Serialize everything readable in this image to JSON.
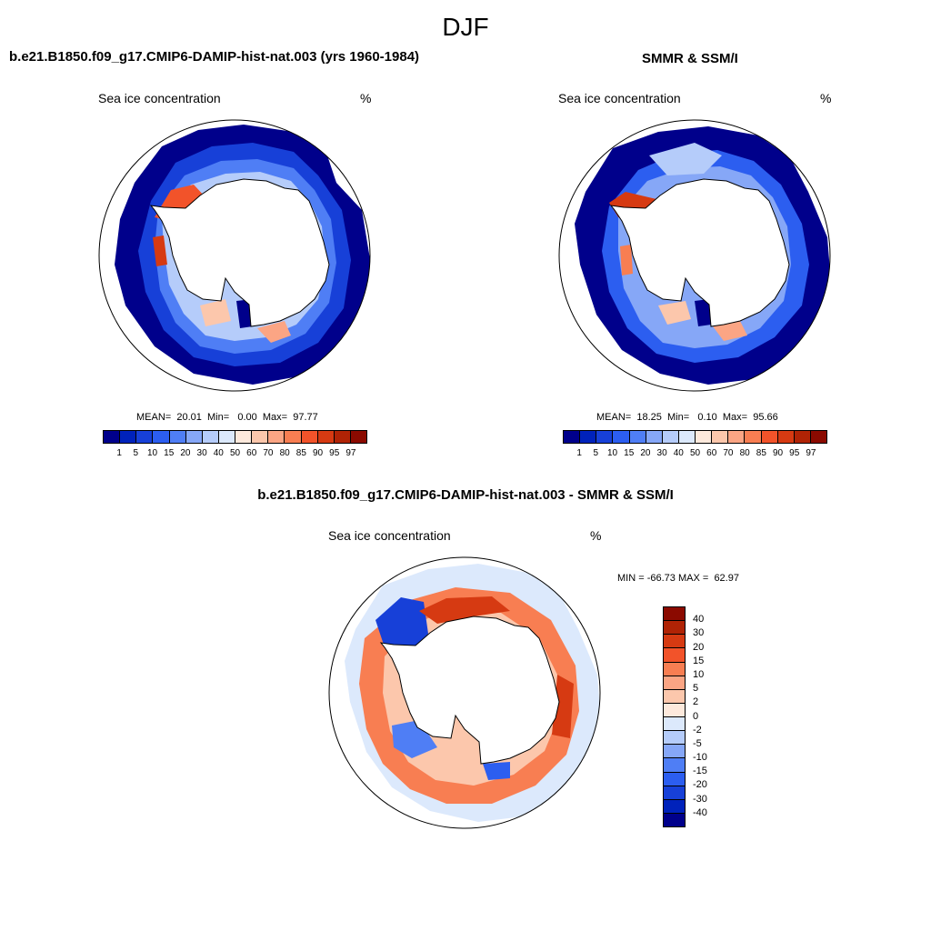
{
  "figure": {
    "title": "DJF"
  },
  "panels": {
    "model": {
      "title": "b.e21.B1850.f09_g17.CMIP6-DAMIP-hist-nat.003 (yrs 1960-1984)",
      "variable": "Sea ice concentration",
      "units": "%",
      "stats": {
        "mean_label": "MEAN=",
        "mean": "20.01",
        "min_label": "Min=",
        "min": "0.00",
        "max_label": "Max=",
        "max": "97.77"
      }
    },
    "obs": {
      "title": "SMMR & SSM/I",
      "variable": "Sea ice concentration",
      "units": "%",
      "stats": {
        "mean_label": "MEAN=",
        "mean": "18.25",
        "min_label": "Min=",
        "min": "0.10",
        "max_label": "Max=",
        "max": "95.66"
      }
    },
    "diff": {
      "title": "b.e21.B1850.f09_g17.CMIP6-DAMIP-hist-nat.003 - SMMR & SSM/I",
      "variable": "Sea ice concentration",
      "units": "%",
      "stats": {
        "min_label": "MIN =",
        "min": "-66.73",
        "max_label": "MAX =",
        "max": "62.97"
      }
    }
  },
  "colorbars": {
    "concentration": {
      "labels": [
        "1",
        "5",
        "10",
        "15",
        "20",
        "30",
        "40",
        "50",
        "60",
        "70",
        "80",
        "85",
        "90",
        "95",
        "97"
      ],
      "colors": [
        "#00008b",
        "#0022bb",
        "#1740d8",
        "#2c5ef0",
        "#4f7ef5",
        "#86a7f7",
        "#b5ccfa",
        "#dce9fc",
        "#fde9dc",
        "#fcc7ac",
        "#fba584",
        "#f87e52",
        "#f2532a",
        "#d63a12",
        "#b02305",
        "#8b0a00"
      ]
    },
    "difference": {
      "labels": [
        "40",
        "30",
        "20",
        "15",
        "10",
        "5",
        "2",
        "0",
        "-2",
        "-5",
        "-10",
        "-15",
        "-20",
        "-30",
        "-40"
      ],
      "colors": [
        "#8b0a00",
        "#b02305",
        "#d63a12",
        "#f2532a",
        "#f87e52",
        "#fba584",
        "#fcc7ac",
        "#fde9dc",
        "#dce9fc",
        "#b5ccfa",
        "#86a7f7",
        "#4f7ef5",
        "#2c5ef0",
        "#1740d8",
        "#0022bb",
        "#00008b"
      ]
    }
  }
}
